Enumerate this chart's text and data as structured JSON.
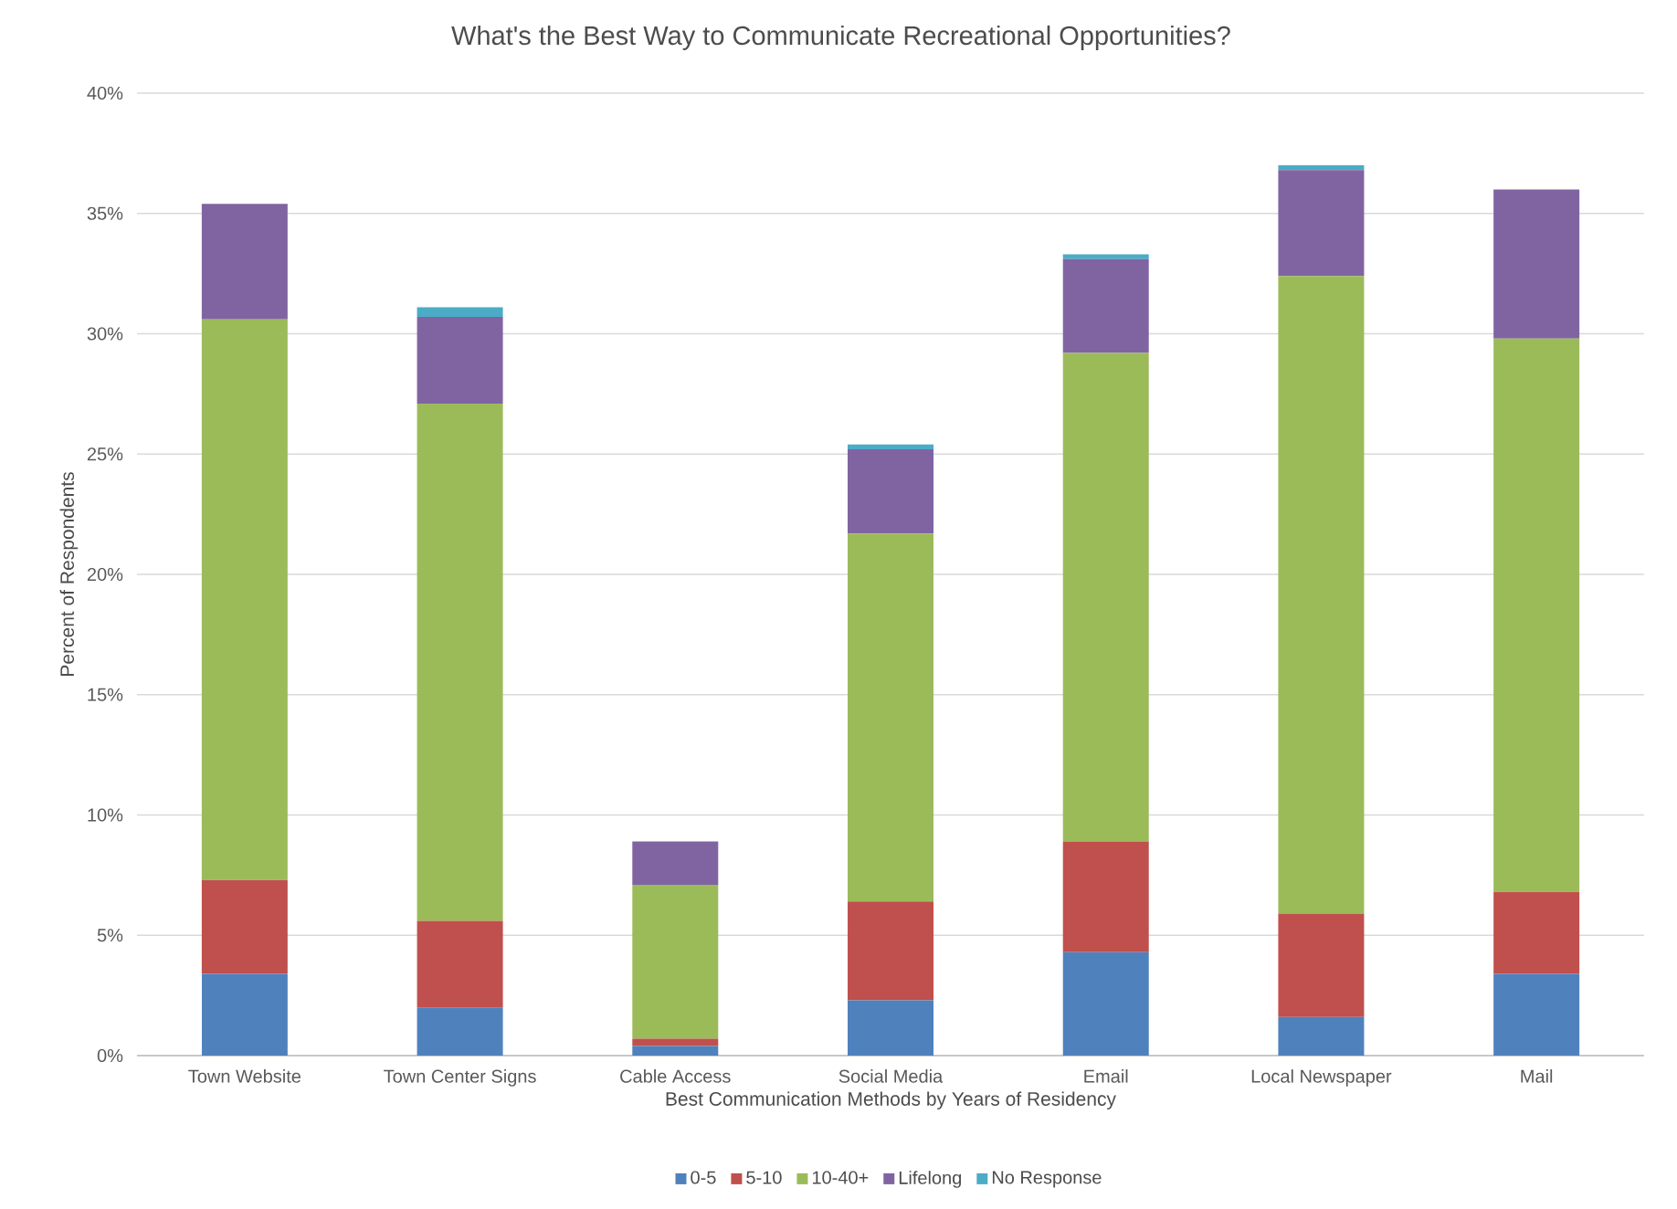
{
  "chart_data": {
    "type": "bar",
    "stacked": true,
    "title": "What's the Best Way to Communicate Recreational Opportunities?",
    "xlabel": "Best Communication Methods by Years of Residency",
    "ylabel": "Percent of Respondents",
    "categories": [
      "Town Website",
      "Town Center Signs",
      "Cable Access",
      "Social Media",
      "Email",
      "Local Newspaper",
      "Mail"
    ],
    "series": [
      {
        "name": "0-5",
        "color": "#4f81bd",
        "values": [
          3.4,
          2.0,
          0.4,
          2.3,
          4.3,
          1.6,
          3.4
        ]
      },
      {
        "name": "5-10",
        "color": "#c0504d",
        "values": [
          3.9,
          3.6,
          0.3,
          4.1,
          4.6,
          4.3,
          3.4
        ]
      },
      {
        "name": "10-40+",
        "color": "#9bbb59",
        "values": [
          23.3,
          21.5,
          6.4,
          15.3,
          20.3,
          26.5,
          23.0
        ]
      },
      {
        "name": "Lifelong",
        "color": "#8064a2",
        "values": [
          4.8,
          3.6,
          1.8,
          3.5,
          3.9,
          4.4,
          6.2
        ]
      },
      {
        "name": "No Response",
        "color": "#4bacc6",
        "values": [
          0,
          0.4,
          0,
          0.2,
          0.2,
          0.2,
          0
        ]
      }
    ],
    "ylim": [
      0,
      40
    ],
    "yticks": [
      {
        "value": 0,
        "label": "0%"
      },
      {
        "value": 5,
        "label": "5%"
      },
      {
        "value": 10,
        "label": "10%"
      },
      {
        "value": 15,
        "label": "15%"
      },
      {
        "value": 20,
        "label": "20%"
      },
      {
        "value": 25,
        "label": "25%"
      },
      {
        "value": 30,
        "label": "30%"
      },
      {
        "value": 35,
        "label": "35%"
      },
      {
        "value": 40,
        "label": "40%"
      }
    ],
    "grid": "y",
    "legend": "bottom"
  }
}
